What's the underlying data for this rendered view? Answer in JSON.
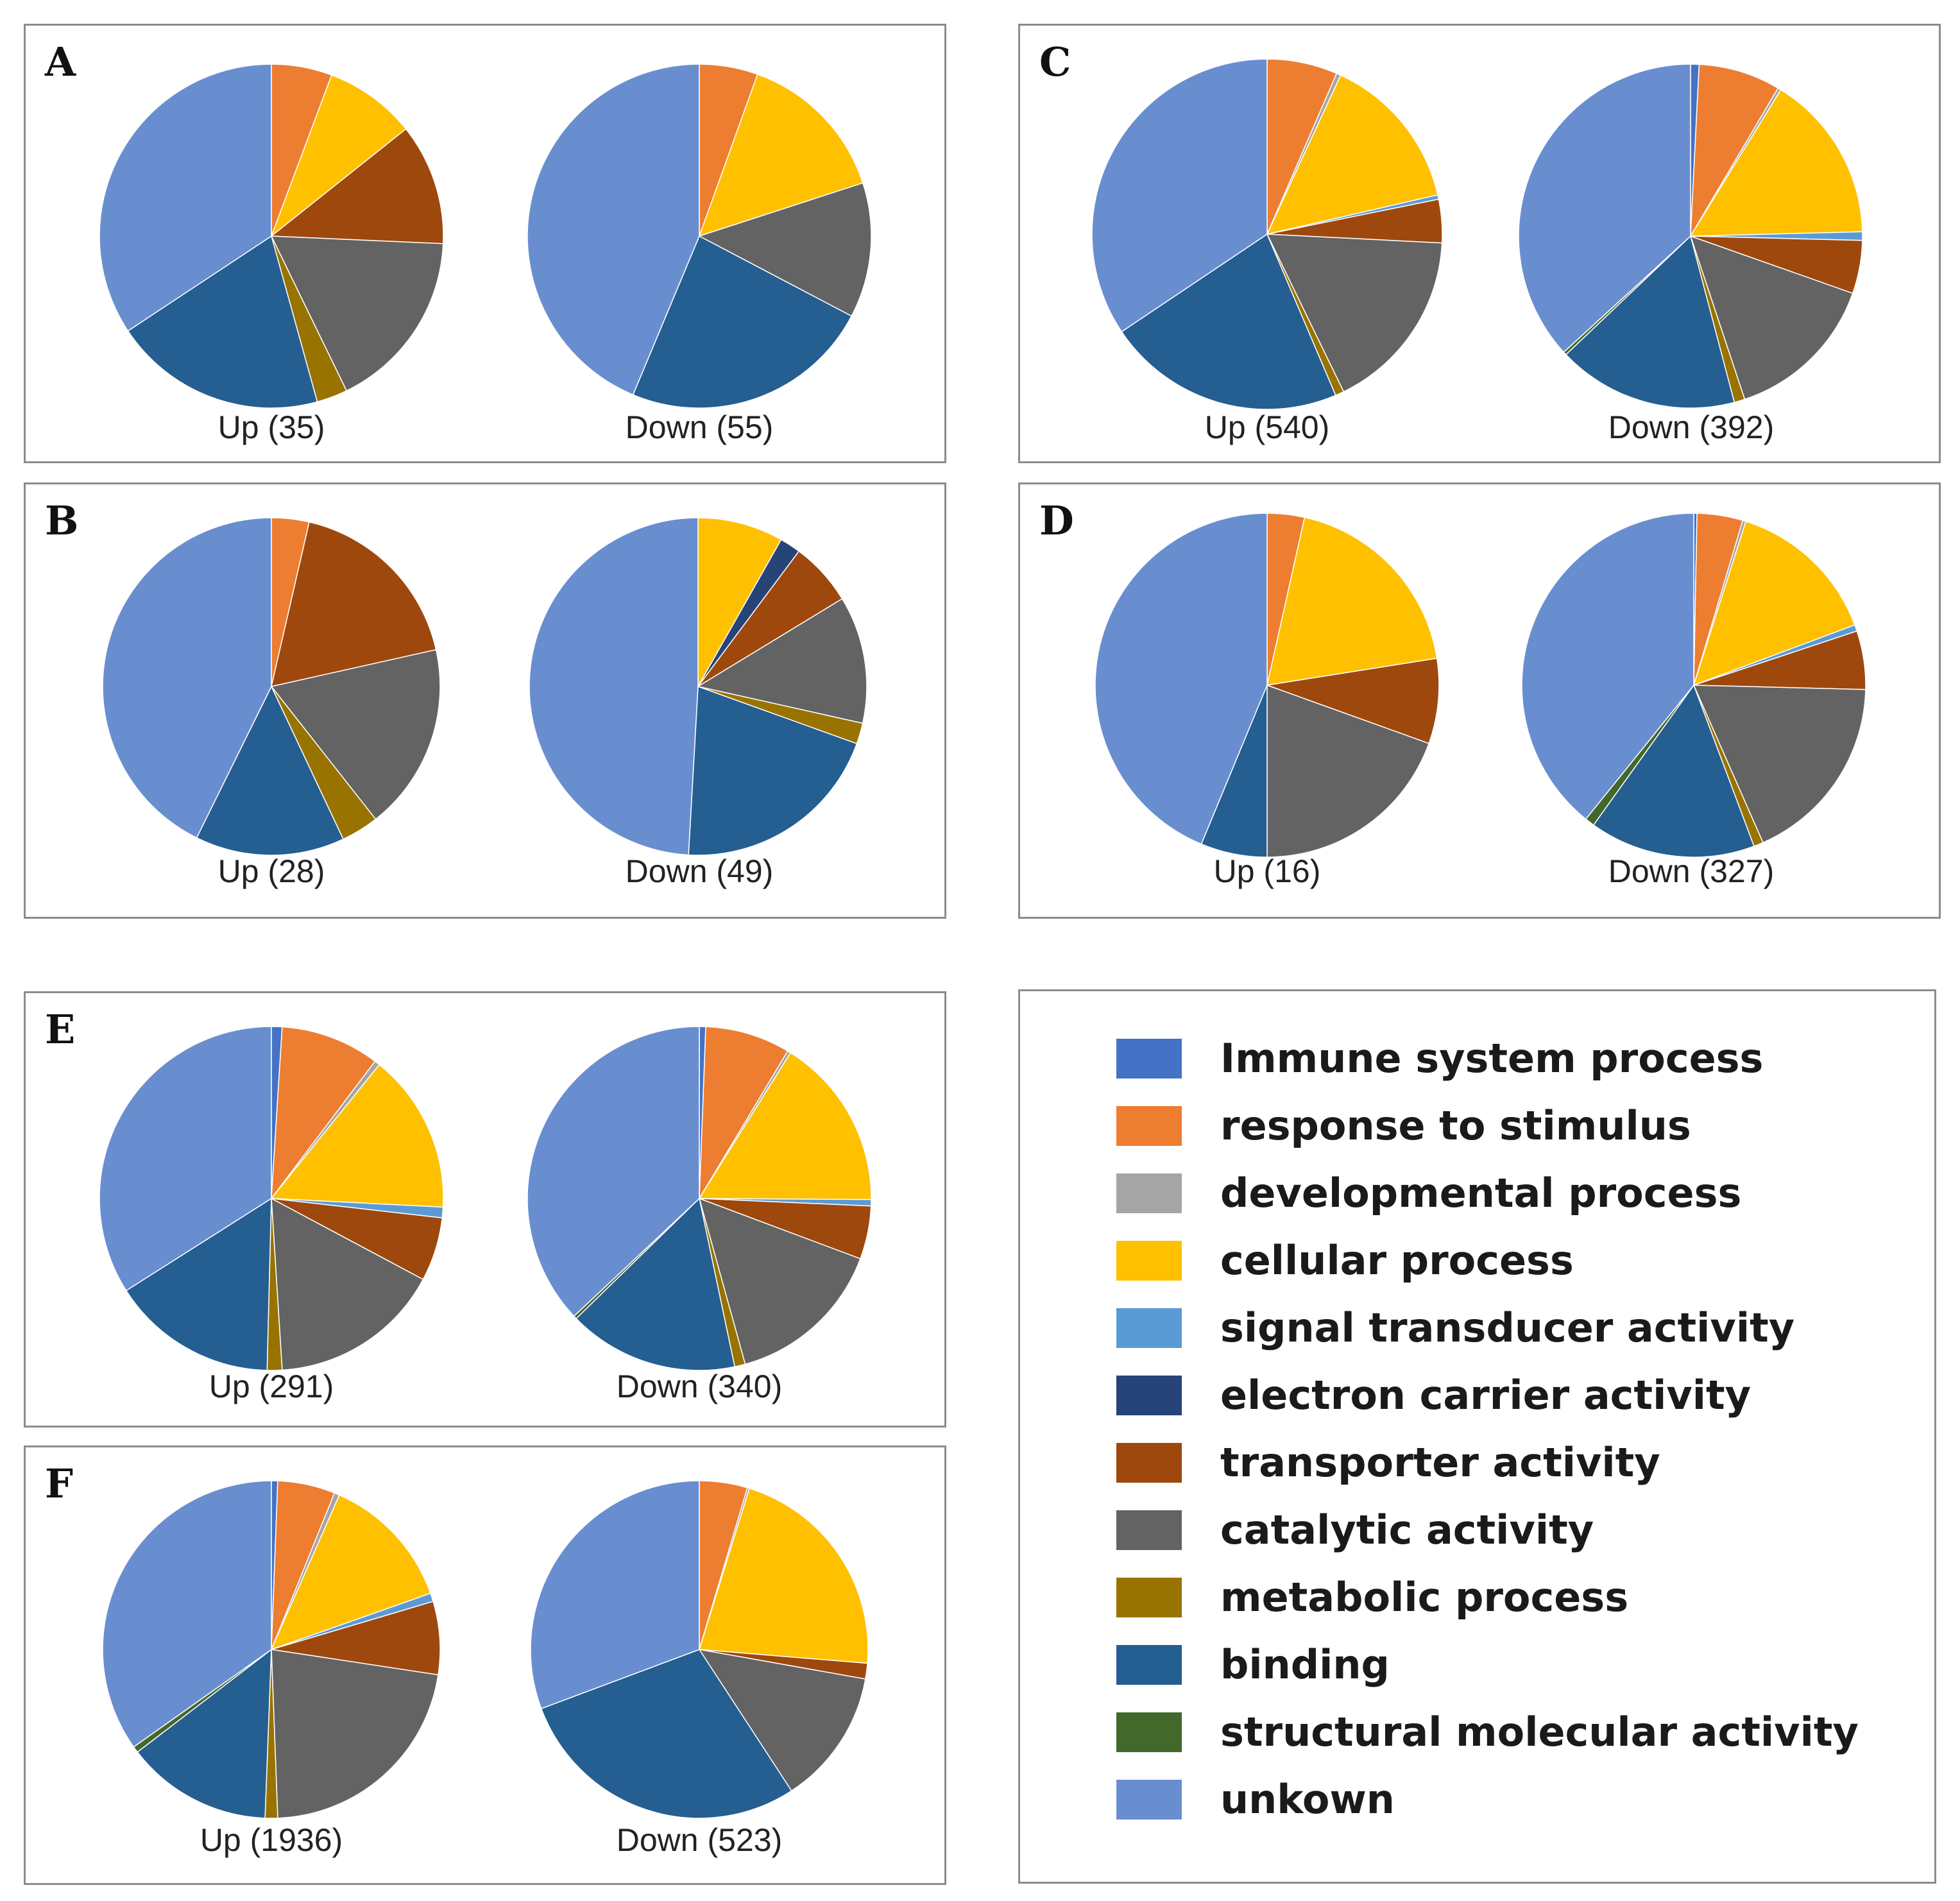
{
  "colors": {
    "immune": "#4472c4",
    "response": "#ed7d31",
    "developmental": "#a5a5a5",
    "cellular": "#ffc000",
    "signal": "#5b9bd5",
    "electron": "#264478",
    "transporter": "#9e480e",
    "catalytic": "#636363",
    "metabolic": "#997300",
    "binding": "#255e91",
    "structural": "#43682b",
    "unknown": "#698ed0"
  },
  "legend": {
    "items": [
      {
        "key": "immune",
        "label": "Immune system process"
      },
      {
        "key": "response",
        "label": "response to stimulus"
      },
      {
        "key": "developmental",
        "label": "developmental process"
      },
      {
        "key": "cellular",
        "label": "cellular process"
      },
      {
        "key": "signal",
        "label": "signal transducer activity"
      },
      {
        "key": "electron",
        "label": "electron carrier activity"
      },
      {
        "key": "transporter",
        "label": "transporter activity"
      },
      {
        "key": "catalytic",
        "label": "catalytic activity"
      },
      {
        "key": "metabolic",
        "label": "metabolic process"
      },
      {
        "key": "binding",
        "label": "binding"
      },
      {
        "key": "structural",
        "label": "structural molecular activity"
      },
      {
        "key": "unknown",
        "label": "unkown"
      }
    ]
  },
  "chart_data": [
    {
      "type": "pie",
      "panel": "A",
      "pies": [
        {
          "label": "Up (35)",
          "slices": {
            "response": 5.7,
            "cellular": 8.6,
            "transporter": 11.4,
            "catalytic": 17.1,
            "metabolic": 2.9,
            "binding": 20.0,
            "unknown": 34.3
          }
        },
        {
          "label": "Down (55)",
          "slices": {
            "response": 5.5,
            "cellular": 14.5,
            "catalytic": 12.7,
            "binding": 23.6,
            "unknown": 43.7
          }
        }
      ]
    },
    {
      "type": "pie",
      "panel": "B",
      "pies": [
        {
          "label": "Up (28)",
          "slices": {
            "response": 3.6,
            "transporter": 17.9,
            "catalytic": 17.9,
            "metabolic": 3.6,
            "binding": 14.3,
            "unknown": 42.7
          }
        },
        {
          "label": "Down (49)",
          "slices": {
            "cellular": 8.2,
            "electron": 2.0,
            "transporter": 6.1,
            "catalytic": 12.2,
            "metabolic": 2.0,
            "binding": 20.4,
            "unknown": 49.1
          }
        }
      ]
    },
    {
      "type": "pie",
      "panel": "C",
      "pies": [
        {
          "label": "Up (540)",
          "slices": {
            "response": 6.5,
            "cellular": 14.5,
            "developmental": 0.4,
            "signal": 0.4,
            "transporter": 4.0,
            "catalytic": 17.0,
            "metabolic": 0.8,
            "binding": 22.0,
            "unknown": 34.4
          }
        },
        {
          "label": "Down (392)",
          "slices": {
            "immune": 0.8,
            "response": 7.7,
            "cellular": 15.8,
            "developmental": 0.3,
            "signal": 0.8,
            "transporter": 5.0,
            "catalytic": 14.5,
            "metabolic": 1.0,
            "binding": 17.0,
            "structural": 0.3,
            "unknown": 36.8
          }
        }
      ]
    },
    {
      "type": "pie",
      "panel": "D",
      "pies": [
        {
          "label": "Up (16)",
          "slices": {
            "response": 3.5,
            "cellular": 19.0,
            "transporter": 8.0,
            "catalytic": 19.5,
            "binding": 6.25,
            "unknown": 43.75
          }
        },
        {
          "label": "Down (327)",
          "slices": {
            "immune": 0.3,
            "response": 4.3,
            "developmental": 0.3,
            "cellular": 14.4,
            "signal": 0.6,
            "transporter": 5.5,
            "catalytic": 18.0,
            "metabolic": 0.9,
            "binding": 15.6,
            "structural": 0.9,
            "unknown": 39.2
          }
        }
      ]
    },
    {
      "type": "pie",
      "panel": "E",
      "pies": [
        {
          "label": "Up (291)",
          "slices": {
            "immune": 1.0,
            "response": 9.3,
            "cellular": 15.0,
            "signal": 1.0,
            "developmental": 0.5,
            "transporter": 6.0,
            "catalytic": 16.2,
            "metabolic": 1.4,
            "binding": 15.6,
            "unknown": 34.0
          }
        },
        {
          "label": "Down (340)",
          "slices": {
            "immune": 0.6,
            "response": 8.0,
            "cellular": 16.2,
            "signal": 0.6,
            "developmental": 0.3,
            "transporter": 5.0,
            "catalytic": 15.0,
            "metabolic": 1.0,
            "binding": 16.0,
            "structural": 0.3,
            "unknown": 37.0
          }
        }
      ]
    },
    {
      "type": "pie",
      "panel": "F",
      "pies": [
        {
          "label": "Up (1936)",
          "slices": {
            "immune": 0.6,
            "response": 5.5,
            "developmental": 0.5,
            "cellular": 13.0,
            "signal": 0.8,
            "transporter": 7.0,
            "catalytic": 22.0,
            "metabolic": 1.2,
            "binding": 14.0,
            "structural": 0.6,
            "unknown": 34.8
          }
        },
        {
          "label": "Down (523)",
          "slices": {
            "response": 4.6,
            "cellular": 21.5,
            "developmental": 0.2,
            "transporter": 1.5,
            "catalytic": 13.0,
            "binding": 28.5,
            "unknown": 30.7
          }
        }
      ]
    }
  ]
}
